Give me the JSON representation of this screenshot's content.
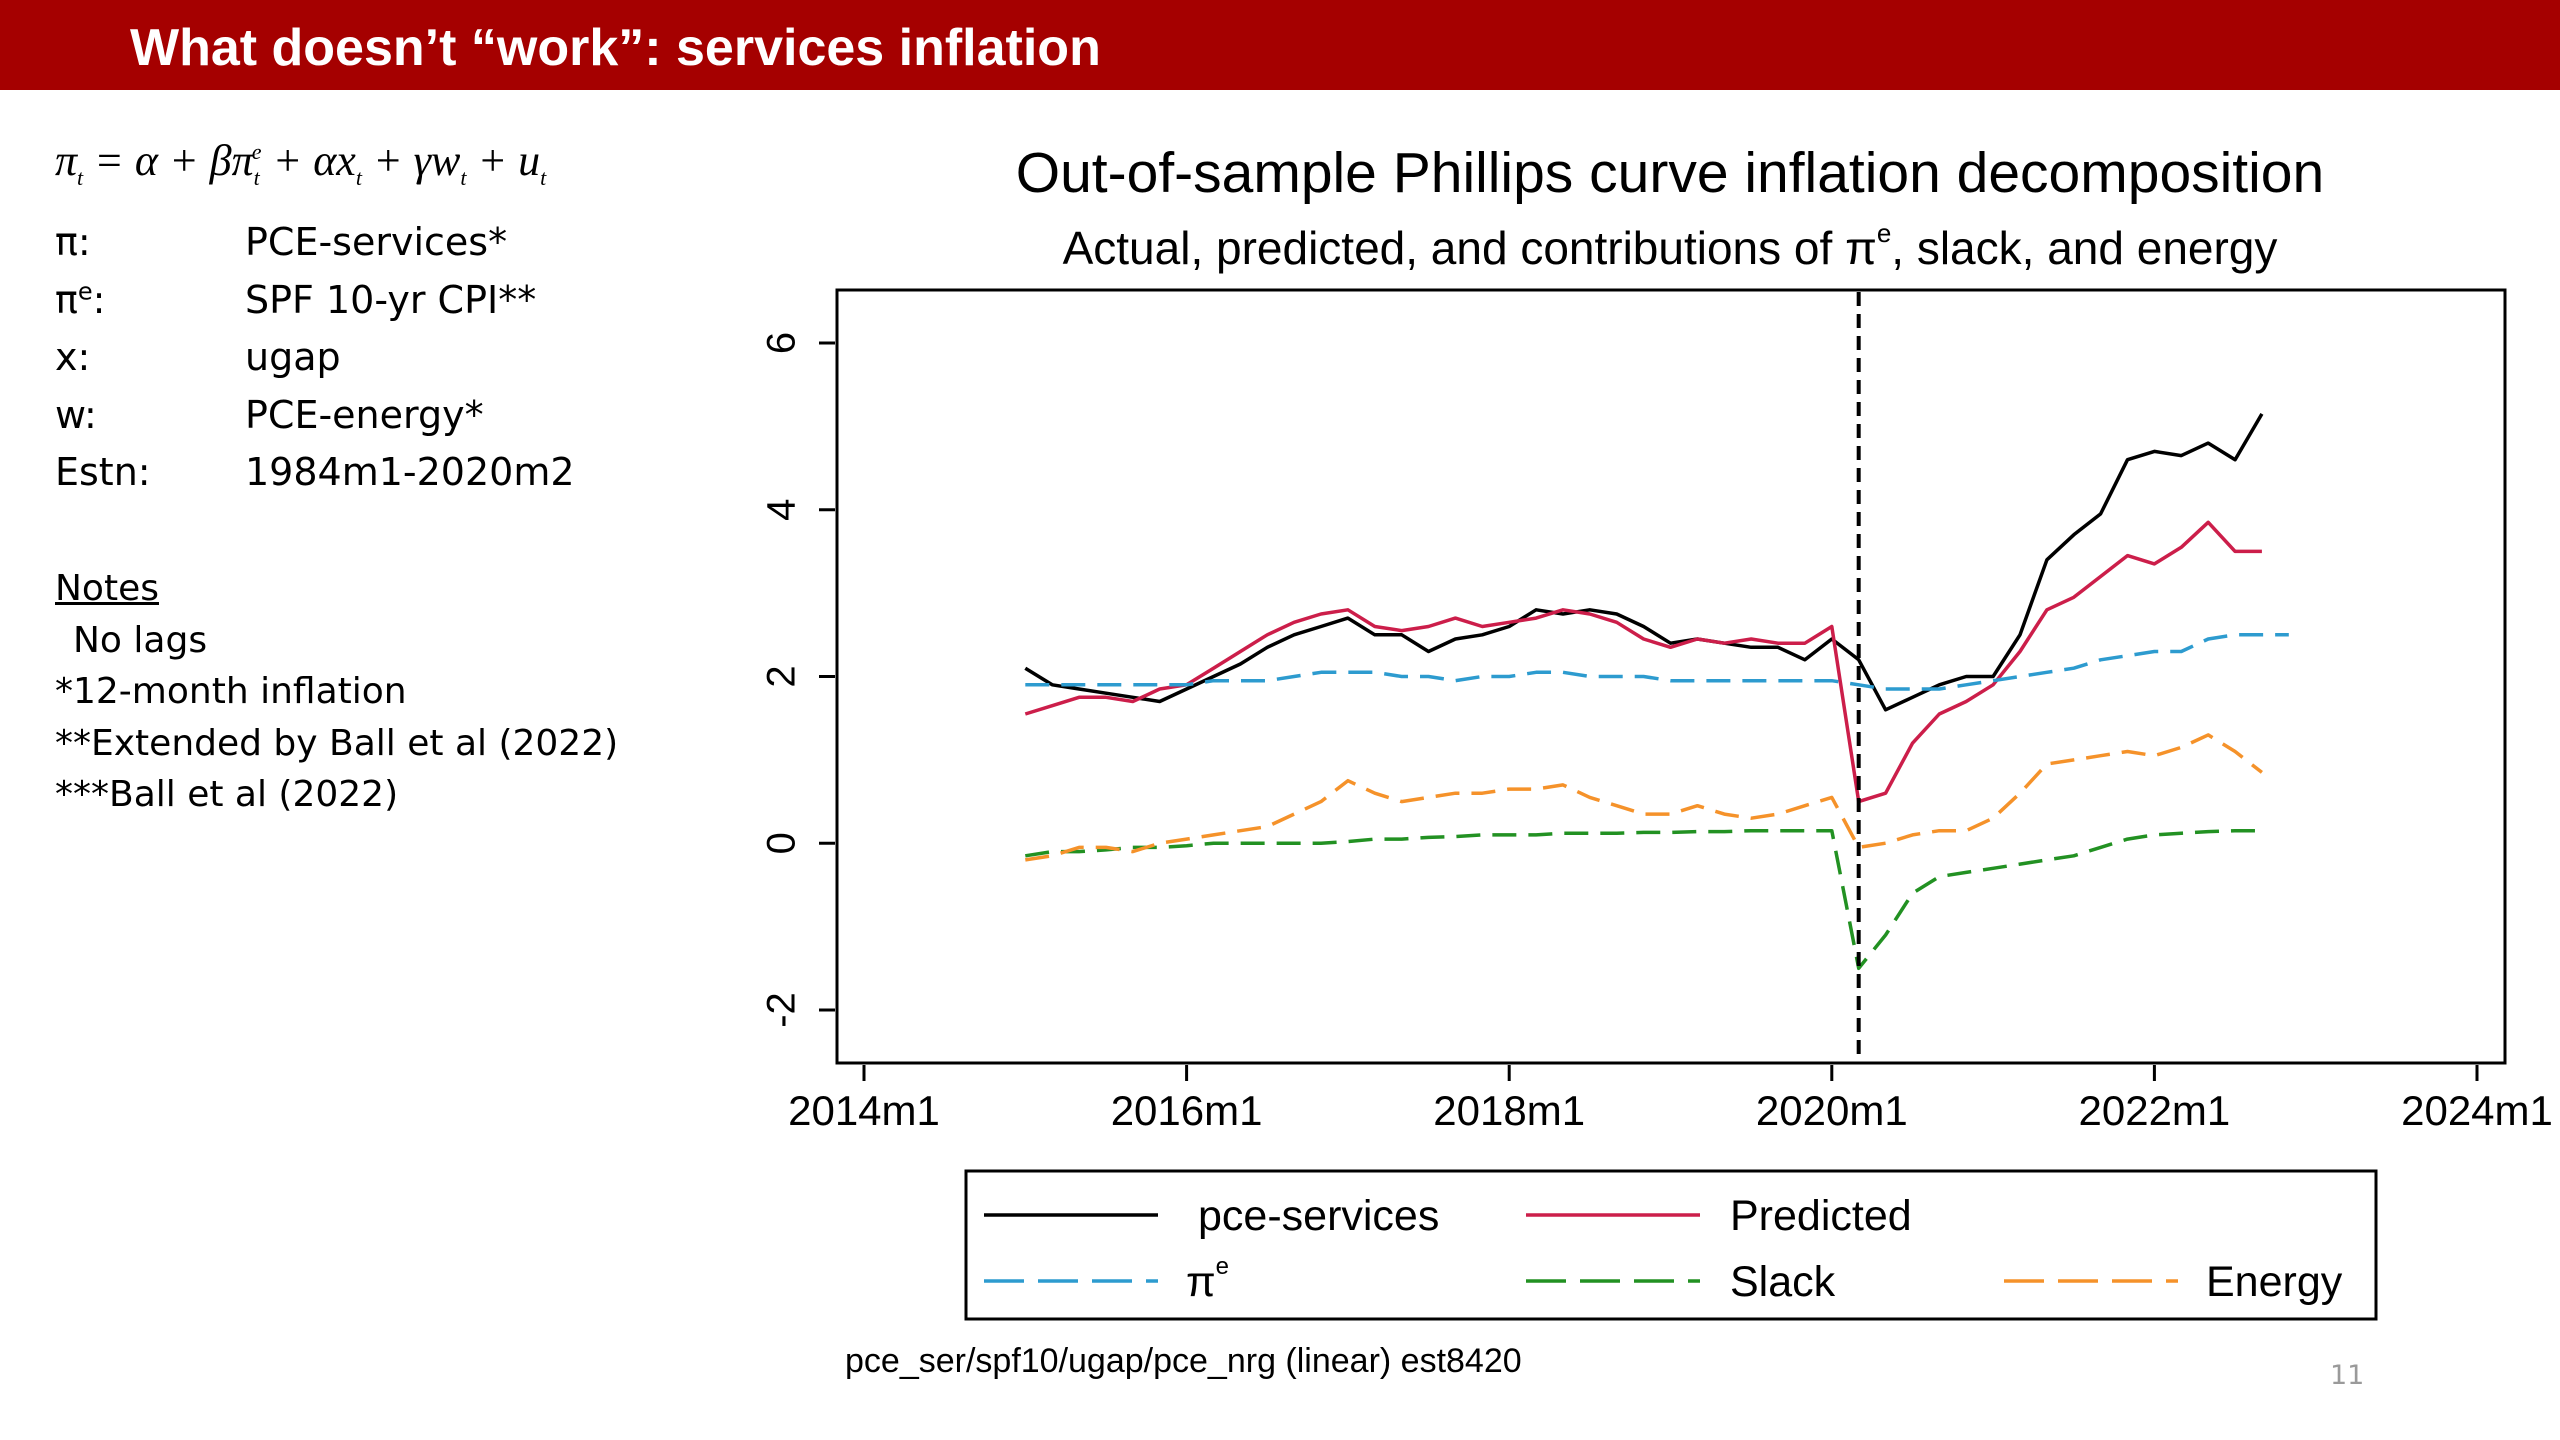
{
  "header": {
    "title": "What doesn’t “work”: services inflation",
    "background": "#a50000"
  },
  "model": {
    "equation": "πt = α + βπte + αxt + γwt + ut",
    "definitions": [
      {
        "symbol": "π:",
        "value": "PCE-services*"
      },
      {
        "symbol": "πe:",
        "value": "SPF 10-yr CPI**"
      },
      {
        "symbol": "x:",
        "value": "ugap"
      },
      {
        "symbol": "w:",
        "value": "PCE-energy*"
      },
      {
        "symbol": "Estn:",
        "value": "1984m1-2020m2"
      }
    ]
  },
  "notes": {
    "heading": "Notes",
    "lines": [
      "No lags",
      "*12-month inflation",
      "**Extended by Ball et al (2022)",
      "***Ball et al (2022)"
    ]
  },
  "chart_data": {
    "type": "line",
    "title": "Out-of-sample Phillips curve inflation decomposition",
    "subtitle": "Actual, predicted, and contributions of πe, slack, and energy",
    "xlabel": "",
    "ylabel": "",
    "x_range": [
      "2014m1",
      "2024m1"
    ],
    "ylim": [
      -2.3,
      6.3
    ],
    "x_ticks": [
      "2014m1",
      "2016m1",
      "2018m1",
      "2020m1",
      "2022m1",
      "2024m1"
    ],
    "y_ticks": [
      "-2",
      "0",
      "2",
      "4",
      "6"
    ],
    "grid": false,
    "legend_position": "bottom",
    "vertical_line": {
      "x": "2020m3",
      "style": "dashed",
      "color": "#000000"
    },
    "x": [
      "2015m1",
      "2015m3",
      "2015m5",
      "2015m7",
      "2015m9",
      "2015m11",
      "2016m1",
      "2016m3",
      "2016m5",
      "2016m7",
      "2016m9",
      "2016m11",
      "2017m1",
      "2017m3",
      "2017m5",
      "2017m7",
      "2017m9",
      "2017m11",
      "2018m1",
      "2018m3",
      "2018m5",
      "2018m7",
      "2018m9",
      "2018m11",
      "2019m1",
      "2019m3",
      "2019m5",
      "2019m7",
      "2019m9",
      "2019m11",
      "2020m1",
      "2020m3",
      "2020m5",
      "2020m7",
      "2020m9",
      "2020m11",
      "2021m1",
      "2021m3",
      "2021m5",
      "2021m7",
      "2021m9",
      "2021m11",
      "2022m1",
      "2022m3",
      "2022m5",
      "2022m7",
      "2022m9",
      "2022m11"
    ],
    "series": [
      {
        "name": "pce-services",
        "color": "#000000",
        "dash": "solid",
        "values": [
          2.1,
          1.9,
          1.85,
          1.8,
          1.75,
          1.7,
          1.85,
          2.0,
          2.15,
          2.35,
          2.5,
          2.6,
          2.7,
          2.5,
          2.5,
          2.3,
          2.45,
          2.5,
          2.6,
          2.8,
          2.75,
          2.8,
          2.75,
          2.6,
          2.4,
          2.45,
          2.4,
          2.35,
          2.35,
          2.2,
          2.45,
          2.2,
          1.6,
          1.75,
          1.9,
          2.0,
          2.0,
          2.5,
          3.4,
          3.7,
          3.95,
          4.6,
          4.7,
          4.65,
          4.8,
          4.6,
          5.15,
          null
        ]
      },
      {
        "name": "Predicted",
        "color": "#cc1e4a",
        "dash": "solid",
        "values": [
          1.55,
          1.65,
          1.75,
          1.75,
          1.7,
          1.85,
          1.9,
          2.1,
          2.3,
          2.5,
          2.65,
          2.75,
          2.8,
          2.6,
          2.55,
          2.6,
          2.7,
          2.6,
          2.65,
          2.7,
          2.8,
          2.75,
          2.65,
          2.45,
          2.35,
          2.45,
          2.4,
          2.45,
          2.4,
          2.4,
          2.6,
          0.5,
          0.6,
          1.2,
          1.55,
          1.7,
          1.9,
          2.3,
          2.8,
          2.95,
          3.2,
          3.45,
          3.35,
          3.55,
          3.85,
          3.5,
          3.5,
          null
        ]
      },
      {
        "name": "πe",
        "color": "#2d9bcf",
        "dash": "long-dash",
        "values": [
          1.9,
          1.9,
          1.9,
          1.9,
          1.9,
          1.9,
          1.9,
          1.95,
          1.95,
          1.95,
          2.0,
          2.05,
          2.05,
          2.05,
          2.0,
          2.0,
          1.95,
          2.0,
          2.0,
          2.05,
          2.05,
          2.0,
          2.0,
          2.0,
          1.95,
          1.95,
          1.95,
          1.95,
          1.95,
          1.95,
          1.95,
          1.9,
          1.85,
          1.85,
          1.85,
          1.9,
          1.95,
          2.0,
          2.05,
          2.1,
          2.2,
          2.25,
          2.3,
          2.3,
          2.45,
          2.5,
          2.5,
          2.5
        ]
      },
      {
        "name": "Slack",
        "color": "#229122",
        "dash": "long-dash",
        "values": [
          -0.15,
          -0.1,
          -0.1,
          -0.08,
          -0.05,
          -0.05,
          -0.03,
          0.0,
          0.0,
          0.0,
          0.0,
          0.0,
          0.02,
          0.05,
          0.05,
          0.07,
          0.08,
          0.1,
          0.1,
          0.1,
          0.12,
          0.12,
          0.12,
          0.13,
          0.13,
          0.14,
          0.14,
          0.15,
          0.15,
          0.15,
          0.15,
          -1.5,
          -1.1,
          -0.6,
          -0.4,
          -0.35,
          -0.3,
          -0.25,
          -0.2,
          -0.15,
          -0.05,
          0.05,
          0.1,
          0.12,
          0.14,
          0.15,
          0.15,
          null
        ]
      },
      {
        "name": "Energy",
        "color": "#f5922a",
        "dash": "long-dash",
        "values": [
          -0.2,
          -0.15,
          -0.05,
          -0.05,
          -0.1,
          0.0,
          0.05,
          0.1,
          0.15,
          0.2,
          0.35,
          0.5,
          0.75,
          0.6,
          0.5,
          0.55,
          0.6,
          0.6,
          0.65,
          0.65,
          0.7,
          0.55,
          0.45,
          0.35,
          0.35,
          0.45,
          0.35,
          0.3,
          0.35,
          0.45,
          0.55,
          -0.05,
          0.0,
          0.1,
          0.15,
          0.15,
          0.3,
          0.6,
          0.95,
          1.0,
          1.05,
          1.1,
          1.05,
          1.15,
          1.3,
          1.1,
          0.85,
          null
        ]
      }
    ],
    "legend": [
      {
        "label": "pce-services",
        "series": 0
      },
      {
        "label": "Predicted",
        "series": 1
      },
      {
        "label": "πe",
        "series": 2
      },
      {
        "label": "Slack",
        "series": 3
      },
      {
        "label": "Energy",
        "series": 4
      }
    ],
    "footnote": "pce_ser/spf10/ugap/pce_nrg (linear) est8420"
  },
  "slide": {
    "page_number": "11"
  }
}
